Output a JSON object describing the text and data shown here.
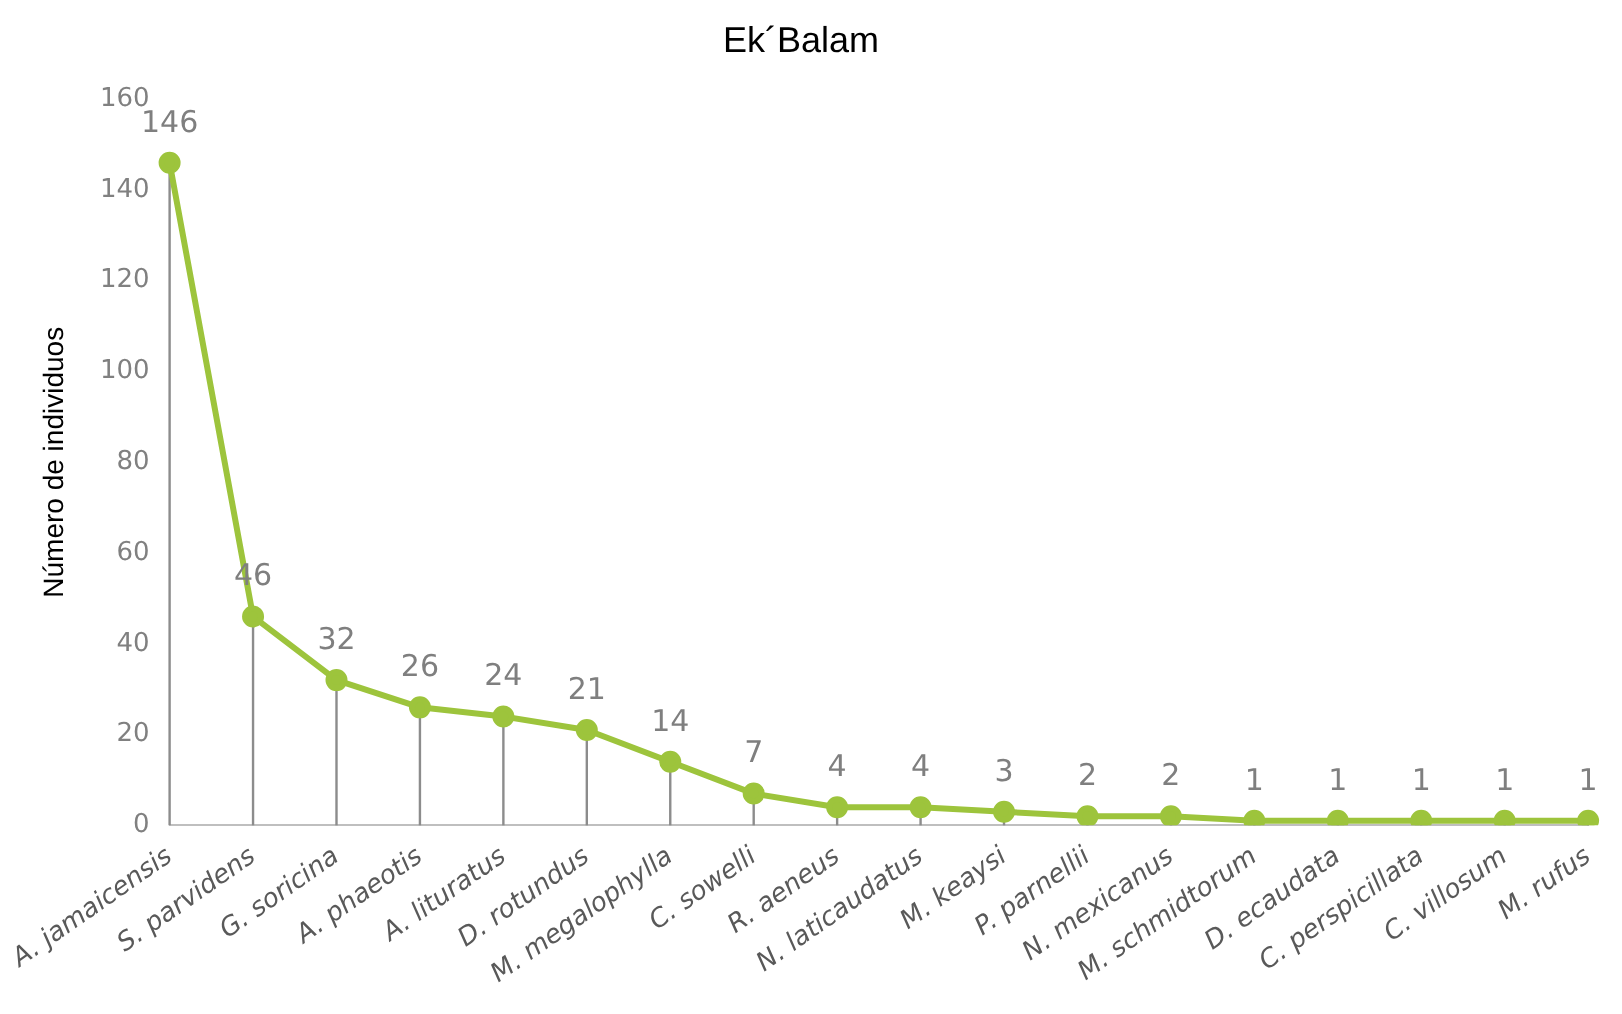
{
  "chart_data": {
    "type": "line",
    "title": "Ek´Balam",
    "ylabel": "Número de individuos",
    "categories": [
      "A. jamaicensis",
      "S. parvidens",
      "G. soricina",
      "A. phaeotis",
      "A. lituratus",
      "D. rotundus",
      "M. megalophylla",
      "C. sowelli",
      "R. aeneus",
      "N. laticaudatus",
      "M. keaysi",
      "P. parnellii",
      "N. mexicanus",
      "M. schmidtorum",
      "D. ecaudata",
      "C. perspicillata",
      "C. villosum",
      "M. rufus"
    ],
    "series": [
      {
        "color": "#9dc43c",
        "values": [
          146,
          46,
          32,
          26,
          24,
          21,
          14,
          7,
          4,
          4,
          3,
          2,
          2,
          1,
          1,
          1,
          1,
          1
        ]
      }
    ],
    "ylim": [
      0,
      160
    ],
    "yticks": [
      0,
      20,
      40,
      60,
      80,
      100,
      120,
      140,
      160
    ],
    "grid": false,
    "legend": false,
    "marker": "circle",
    "line_style": "solid",
    "data_labels": true
  }
}
